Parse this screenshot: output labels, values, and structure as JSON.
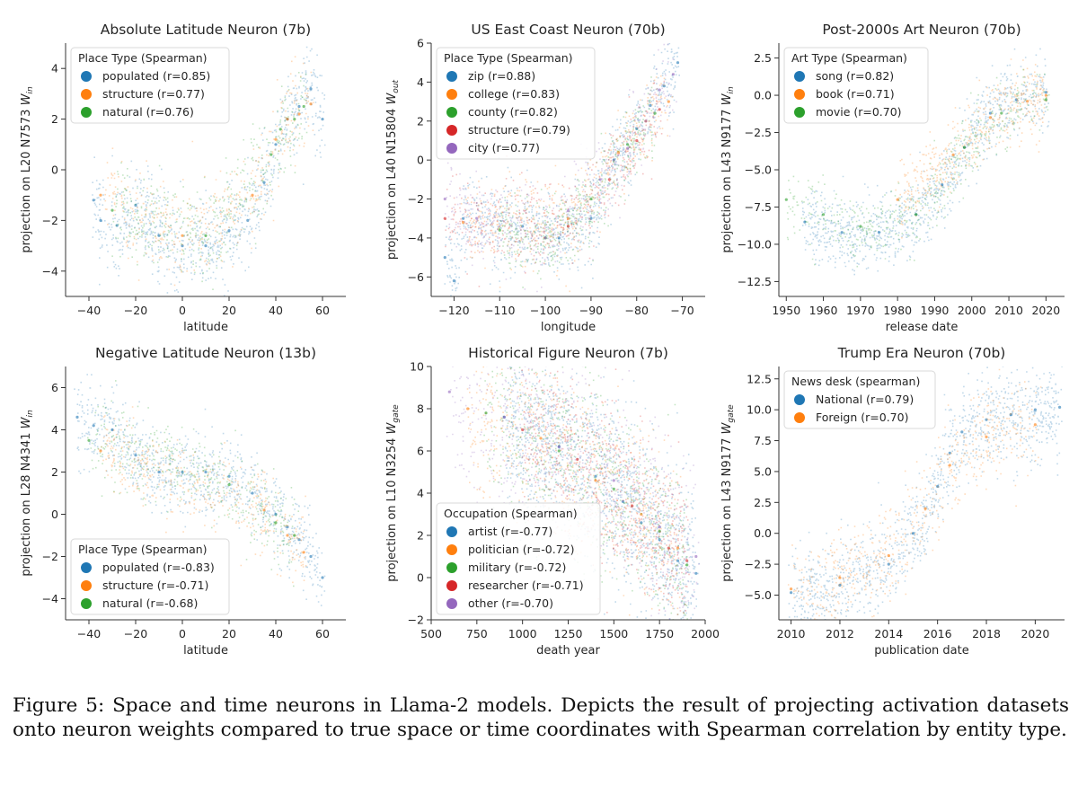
{
  "caption": "Figure 5: Space and time neurons in Llama-2 models. Depicts the result of projecting activation datasets onto neuron weights compared to true space or time coordinates with Spearman correlation by entity type.",
  "chart_data": [
    {
      "type": "scatter",
      "title": "Absolute Latitude Neuron (7b)",
      "xlabel": "latitude",
      "ylabel": "projection on L20 N7573",
      "ylabel_sub": "in",
      "xlim": [
        -50,
        70
      ],
      "ylim": [
        -5,
        5
      ],
      "xticks": [
        -40,
        -20,
        0,
        20,
        40,
        60
      ],
      "yticks": [
        -4,
        -2,
        0,
        2,
        4
      ],
      "legend_title": "Place Type (Spearman)",
      "legend_position": "upper-left",
      "series": [
        {
          "name": "populated  (r=0.85)",
          "color": "#1f77b4",
          "points": [
            [
              -38,
              -1.2
            ],
            [
              -35,
              -2.0
            ],
            [
              -28,
              -2.2
            ],
            [
              -20,
              -1.4
            ],
            [
              -10,
              -2.6
            ],
            [
              0,
              -3.0
            ],
            [
              10,
              -3.0
            ],
            [
              20,
              -2.4
            ],
            [
              28,
              -2.0
            ],
            [
              35,
              -0.5
            ],
            [
              40,
              1.0
            ],
            [
              45,
              2.0
            ],
            [
              50,
              2.5
            ],
            [
              55,
              3.2
            ],
            [
              60,
              2.0
            ]
          ]
        },
        {
          "name": "structure (r=0.77)",
          "color": "#ff7f0e",
          "points": [
            [
              -35,
              -1.0
            ],
            [
              0,
              -2.6
            ],
            [
              30,
              -1.0
            ],
            [
              40,
              1.2
            ],
            [
              45,
              2.0
            ],
            [
              50,
              2.2
            ],
            [
              55,
              2.6
            ]
          ]
        },
        {
          "name": "natural  (r=0.76)",
          "color": "#2ca02c",
          "points": [
            [
              -30,
              -1.6
            ],
            [
              10,
              -2.6
            ],
            [
              38,
              0.6
            ],
            [
              42,
              1.6
            ],
            [
              48,
              2.0
            ],
            [
              52,
              2.5
            ]
          ]
        }
      ]
    },
    {
      "type": "scatter",
      "title": "US East Coast Neuron (70b)",
      "xlabel": "longitude",
      "ylabel": "projection on L40 N15804",
      "ylabel_sub": "out",
      "xlim": [
        -125,
        -65
      ],
      "ylim": [
        -7,
        6
      ],
      "xticks": [
        -120,
        -110,
        -100,
        -90,
        -80,
        -70
      ],
      "yticks": [
        -6,
        -4,
        -2,
        0,
        2,
        4,
        6
      ],
      "legend_title": "Place Type (Spearman)",
      "legend_position": "upper-left",
      "series": [
        {
          "name": "zip (r=0.88)",
          "color": "#1f77b4",
          "points": [
            [
              -122,
              -5.0
            ],
            [
              -120,
              -6.2
            ],
            [
              -118,
              -3.0
            ],
            [
              -105,
              -3.4
            ],
            [
              -97,
              -4.0
            ],
            [
              -90,
              -3.0
            ],
            [
              -85,
              0.0
            ],
            [
              -80,
              1.6
            ],
            [
              -77,
              2.8
            ],
            [
              -74,
              3.8
            ],
            [
              -71,
              5.0
            ]
          ]
        },
        {
          "name": "college (r=0.83)",
          "color": "#ff7f0e",
          "points": [
            [
              -118,
              -3.2
            ],
            [
              -95,
              -3.0
            ],
            [
              -84,
              0.4
            ],
            [
              -78,
              2.0
            ],
            [
              -73,
              3.0
            ]
          ]
        },
        {
          "name": "county (r=0.82)",
          "color": "#2ca02c",
          "points": [
            [
              -110,
              -3.6
            ],
            [
              -100,
              -4.0
            ],
            [
              -90,
              -2.0
            ],
            [
              -82,
              0.8
            ],
            [
              -76,
              2.4
            ]
          ]
        },
        {
          "name": "structure (r=0.79)",
          "color": "#d62728",
          "points": [
            [
              -122,
              -3.0
            ],
            [
              -95,
              -3.4
            ],
            [
              -86,
              -1.0
            ],
            [
              -80,
              1.0
            ],
            [
              -75,
              2.6
            ]
          ]
        },
        {
          "name": "city (r=0.77)",
          "color": "#9467bd",
          "points": [
            [
              -122,
              -2.0
            ],
            [
              -115,
              -3.0
            ],
            [
              -100,
              -4.0
            ],
            [
              -95,
              -2.6
            ],
            [
              -88,
              -1.0
            ],
            [
              -82,
              0.6
            ],
            [
              -78,
              2.0
            ],
            [
              -75,
              3.6
            ],
            [
              -72,
              4.4
            ]
          ]
        }
      ]
    },
    {
      "type": "scatter",
      "title": "Post-2000s Art Neuron (70b)",
      "xlabel": "release date",
      "ylabel": "projection on L43 N9177",
      "ylabel_sub": "in",
      "xlim": [
        1948,
        2025
      ],
      "ylim": [
        -13.5,
        3.5
      ],
      "xticks": [
        1950,
        1960,
        1970,
        1980,
        1990,
        2000,
        2010,
        2020
      ],
      "yticks": [
        -12.5,
        -10.0,
        -7.5,
        -5.0,
        -2.5,
        0.0,
        2.5
      ],
      "legend_title": "Art Type (Spearman)",
      "legend_position": "upper-left",
      "series": [
        {
          "name": "song (r=0.82)",
          "color": "#1f77b4",
          "points": [
            [
              1955,
              -8.5
            ],
            [
              1965,
              -9.2
            ],
            [
              1975,
              -9.2
            ],
            [
              1985,
              -8.0
            ],
            [
              1992,
              -6.0
            ],
            [
              1998,
              -3.5
            ],
            [
              2005,
              -1.2
            ],
            [
              2012,
              -0.3
            ],
            [
              2020,
              0.2
            ]
          ]
        },
        {
          "name": "book (r=0.71)",
          "color": "#ff7f0e",
          "points": [
            [
              1980,
              -7.0
            ],
            [
              1995,
              -4.0
            ],
            [
              2005,
              -1.5
            ],
            [
              2015,
              -0.4
            ],
            [
              2020,
              0.0
            ]
          ]
        },
        {
          "name": "movie (r=0.70)",
          "color": "#2ca02c",
          "points": [
            [
              1950,
              -7.0
            ],
            [
              1960,
              -8.0
            ],
            [
              1970,
              -8.8
            ],
            [
              1985,
              -8.0
            ],
            [
              1998,
              -3.5
            ],
            [
              2008,
              -1.2
            ],
            [
              2020,
              -0.3
            ]
          ]
        }
      ]
    },
    {
      "type": "scatter",
      "title": "Negative Latitude Neuron (13b)",
      "xlabel": "latitude",
      "ylabel": "projection on L28 N4341",
      "ylabel_sub": "in",
      "xlim": [
        -50,
        70
      ],
      "ylim": [
        -5,
        7
      ],
      "xticks": [
        -40,
        -20,
        0,
        20,
        40,
        60
      ],
      "yticks": [
        -4,
        -2,
        0,
        2,
        4,
        6
      ],
      "legend_title": "Place Type (Spearman)",
      "legend_position": "lower-left",
      "series": [
        {
          "name": "populated  (r=-0.83)",
          "color": "#1f77b4",
          "points": [
            [
              -45,
              4.6
            ],
            [
              -38,
              4.2
            ],
            [
              -30,
              4.0
            ],
            [
              -20,
              2.8
            ],
            [
              -10,
              2.0
            ],
            [
              0,
              2.0
            ],
            [
              10,
              2.0
            ],
            [
              20,
              1.8
            ],
            [
              30,
              1.0
            ],
            [
              40,
              0.0
            ],
            [
              45,
              -0.6
            ],
            [
              50,
              -1.2
            ],
            [
              55,
              -2.0
            ],
            [
              60,
              -3.0
            ]
          ]
        },
        {
          "name": "structure (r=-0.71)",
          "color": "#ff7f0e",
          "points": [
            [
              -35,
              3.0
            ],
            [
              35,
              0.2
            ],
            [
              45,
              -1.0
            ],
            [
              52,
              -1.8
            ]
          ]
        },
        {
          "name": "natural  (r=-0.68)",
          "color": "#2ca02c",
          "points": [
            [
              -40,
              3.5
            ],
            [
              20,
              1.4
            ],
            [
              40,
              -0.4
            ],
            [
              48,
              -1.0
            ]
          ]
        }
      ]
    },
    {
      "type": "scatter",
      "title": "Historical Figure Neuron (7b)",
      "xlabel": "death year",
      "ylabel": "projection on L10 N3254",
      "ylabel_sub": "gate",
      "xlim": [
        500,
        2000
      ],
      "ylim": [
        -2,
        10
      ],
      "xticks": [
        500,
        750,
        1000,
        1250,
        1500,
        1750,
        2000
      ],
      "yticks": [
        -2,
        0,
        2,
        4,
        6,
        8,
        10
      ],
      "legend_title": "Occupation (Spearman)",
      "legend_position": "lower-left",
      "series": [
        {
          "name": "artist (r=-0.77)",
          "color": "#1f77b4",
          "points": [
            [
              900,
              7.6
            ],
            [
              1200,
              6.2
            ],
            [
              1400,
              4.8
            ],
            [
              1550,
              3.6
            ],
            [
              1650,
              2.6
            ],
            [
              1750,
              1.8
            ],
            [
              1850,
              0.8
            ],
            [
              1950,
              0.2
            ]
          ]
        },
        {
          "name": "politician (r=-0.72)",
          "color": "#ff7f0e",
          "points": [
            [
              700,
              8.0
            ],
            [
              1100,
              6.6
            ],
            [
              1400,
              4.6
            ],
            [
              1650,
              3.0
            ],
            [
              1850,
              1.4
            ]
          ]
        },
        {
          "name": "military (r=-0.72)",
          "color": "#2ca02c",
          "points": [
            [
              800,
              7.8
            ],
            [
              1200,
              6.0
            ],
            [
              1500,
              4.2
            ],
            [
              1750,
              2.2
            ],
            [
              1900,
              0.6
            ]
          ]
        },
        {
          "name": "researcher (r=-0.71)",
          "color": "#d62728",
          "points": [
            [
              1000,
              7.0
            ],
            [
              1300,
              5.6
            ],
            [
              1600,
              3.4
            ],
            [
              1800,
              1.4
            ],
            [
              1900,
              0.8
            ]
          ]
        },
        {
          "name": "other (r=-0.70)",
          "color": "#9467bd",
          "points": [
            [
              600,
              8.8
            ],
            [
              900,
              7.6
            ],
            [
              1200,
              6.2
            ],
            [
              1500,
              4.6
            ],
            [
              1750,
              2.4
            ],
            [
              1950,
              1.0
            ]
          ]
        }
      ]
    },
    {
      "type": "scatter",
      "title": "Trump Era Neuron (70b)",
      "xlabel": "publication date",
      "ylabel": "projection on L43 N9177",
      "ylabel_sub": "gate",
      "xlim": [
        2009.5,
        2021.2
      ],
      "ylim": [
        -7,
        13.5
      ],
      "xticks": [
        2010,
        2012,
        2014,
        2016,
        2018,
        2020
      ],
      "yticks": [
        -5.0,
        -2.5,
        0.0,
        2.5,
        5.0,
        7.5,
        10.0,
        12.5
      ],
      "legend_title": "News desk (spearman)",
      "legend_position": "upper-left",
      "series": [
        {
          "name": "National (r=0.79)",
          "color": "#1f77b4",
          "points": [
            [
              2010,
              -4.8
            ],
            [
              2012,
              -4.2
            ],
            [
              2014,
              -2.5
            ],
            [
              2015,
              0.0
            ],
            [
              2016,
              3.8
            ],
            [
              2016.5,
              6.5
            ],
            [
              2017,
              8.2
            ],
            [
              2018,
              9.2
            ],
            [
              2019,
              9.6
            ],
            [
              2020,
              10.0
            ],
            [
              2021,
              10.2
            ]
          ]
        },
        {
          "name": "Foreign (r=0.70)",
          "color": "#ff7f0e",
          "points": [
            [
              2010,
              -4.5
            ],
            [
              2012,
              -3.6
            ],
            [
              2014,
              -1.8
            ],
            [
              2015.5,
              2.0
            ],
            [
              2016.5,
              5.5
            ],
            [
              2018,
              7.8
            ],
            [
              2020,
              8.8
            ]
          ]
        }
      ]
    }
  ]
}
